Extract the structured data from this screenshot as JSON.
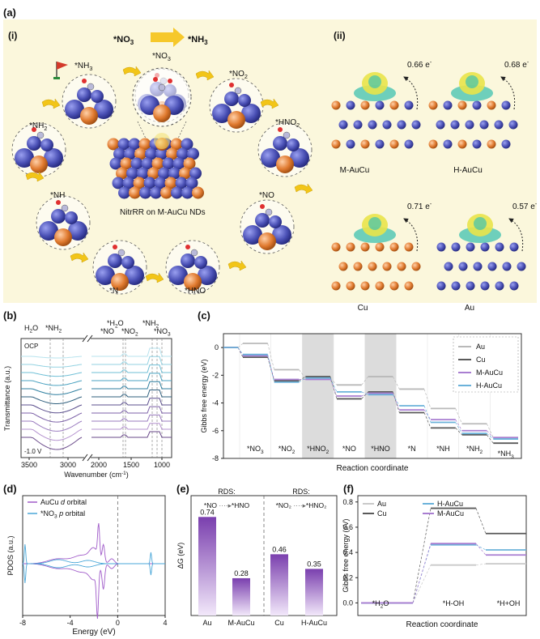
{
  "figure_label": "(a)",
  "panel_a": {
    "label_i": "(i)",
    "label_ii": "(ii)",
    "reaction_from": "*NO",
    "reaction_from_sub": "3",
    "reaction_to": "*NH",
    "reaction_to_sub": "3",
    "center_caption": "NitrRR on M-AuCu NDs",
    "cycle": [
      {
        "name": "*NH3-final",
        "text": "*NH",
        "sub": "3"
      },
      {
        "name": "*NO3",
        "text": "*NO",
        "sub": "3"
      },
      {
        "name": "*NO2",
        "text": "*NO",
        "sub": "2"
      },
      {
        "name": "*HNO2",
        "text": "*HNO",
        "sub": "2"
      },
      {
        "name": "*NO",
        "text": "*NO",
        "sub": ""
      },
      {
        "name": "*HNO",
        "text": "*HNO",
        "sub": ""
      },
      {
        "name": "*N",
        "text": "*N",
        "sub": ""
      },
      {
        "name": "*NH",
        "text": "*NH",
        "sub": ""
      },
      {
        "name": "*NH2",
        "text": "*NH",
        "sub": "2"
      }
    ],
    "charge": [
      {
        "label": "M-AuCu",
        "charge": "0.66 e",
        "sup": "-"
      },
      {
        "label": "H-AuCu",
        "charge": "0.68 e",
        "sup": "-"
      },
      {
        "label": "Cu",
        "charge": "0.71 e",
        "sup": "-"
      },
      {
        "label": "Au",
        "charge": "0.57 e",
        "sup": "-"
      }
    ],
    "colors": {
      "background": "#fbf7dc",
      "au_atom": "#4a50b5",
      "cu_atom": "#e07a2f",
      "arrow": "#f2c518"
    }
  },
  "panel_b": {
    "label": "(b)",
    "ylabel": "Transmittance (a.u.)",
    "xlabel": "Wavenumber (cm",
    "xlabel_sup": "-1",
    "xlabel_end": ")",
    "top_labels": [
      "H2O",
      "*NH2",
      "*H2O",
      "*NO",
      "*NO2",
      "*NH2",
      "*NO3"
    ],
    "ocp": "OCP",
    "potential": "-1.0 V",
    "x_ticks": [
      "3500",
      "3000",
      "2000",
      "1500",
      "1000"
    ]
  },
  "chart_data": [
    {
      "panel": "c",
      "type": "line",
      "title": "",
      "xlabel": "Reaction coordinate",
      "ylabel": "Gibbs free energy (eV)",
      "ylim": [
        -8,
        1
      ],
      "y_ticks": [
        "0",
        "-2",
        "-4",
        "-6",
        "-8"
      ],
      "categories": [
        "*NO3",
        "*NO2",
        "*HNO2",
        "*NO",
        "*HNO",
        "*N",
        "*NH",
        "*NH2",
        "*NH3"
      ],
      "highlighted_steps": [
        "*HNO2",
        "*HNO"
      ],
      "legend_position": "top-right",
      "series": [
        {
          "name": "Au",
          "color": "#b9b9b9",
          "values": [
            0.3,
            -1.6,
            -2.2,
            -2.7,
            -2.1,
            -3.0,
            -4.4,
            -5.5,
            -6.5
          ]
        },
        {
          "name": "Cu",
          "color": "#5a5a5a",
          "values": [
            -0.7,
            -2.4,
            -2.1,
            -3.7,
            -3.2,
            -4.7,
            -5.8,
            -6.3,
            -6.9
          ]
        },
        {
          "name": "M-AuCu",
          "color": "#a97ed1",
          "values": [
            -0.6,
            -2.3,
            -2.3,
            -3.5,
            -3.3,
            -4.5,
            -5.2,
            -6.0,
            -6.5
          ]
        },
        {
          "name": "H-AuCu",
          "color": "#6bb2da",
          "values": [
            -0.5,
            -2.5,
            -2.2,
            -3.2,
            -3.4,
            -4.2,
            -5.4,
            -6.2,
            -6.6
          ]
        }
      ]
    },
    {
      "panel": "d",
      "type": "line",
      "xlabel": "Energy (eV)",
      "ylabel": "PDOS (a.u.)",
      "x_ticks": [
        "-8",
        "-4",
        "0",
        "4"
      ],
      "xlim": [
        -8,
        4
      ],
      "legend_position": "top-left",
      "series": [
        {
          "name": "AuCu d orbital",
          "legend_prefix": "AuCu ",
          "legend_italic": "d",
          "legend_suffix": " orbital",
          "color": "#a05bc9"
        },
        {
          "name": "*NO3 p orbital",
          "legend_prefix": "*NO",
          "legend_sub": "3",
          "legend_italic": " p",
          "legend_suffix": " orbital",
          "color": "#4aa7d8"
        }
      ]
    },
    {
      "panel": "e",
      "type": "bar",
      "ylabel": "ΔG (eV)",
      "ylim": [
        0,
        0.9
      ],
      "categories": [
        "Au",
        "M-AuCu",
        "Cu",
        "H-AuCu"
      ],
      "values": [
        0.74,
        0.28,
        0.46,
        0.35
      ],
      "value_labels": [
        "0.74",
        "0.28",
        "0.46",
        "0.35"
      ],
      "groups": [
        {
          "title": "RDS:",
          "step_from": "*NO",
          "step_to": "*HNO"
        },
        {
          "title": "RDS:",
          "step_from": "*NO₂",
          "step_to": "*HNO₂"
        }
      ],
      "bar_color": "#7a3fae"
    },
    {
      "panel": "f",
      "type": "line",
      "xlabel": "Reaction coordinate",
      "ylabel": "Gibbs free energy (eV)",
      "ylim": [
        -0.1,
        0.85
      ],
      "y_ticks": [
        "0.0",
        "0.2",
        "0.4",
        "0.6",
        "0.8"
      ],
      "categories": [
        "*H2O",
        "*H-OH",
        "*H+OH"
      ],
      "legend_position": "top-left",
      "series": [
        {
          "name": "Au",
          "color": "#c9c9c9",
          "values": [
            0.0,
            0.3,
            0.31
          ]
        },
        {
          "name": "Cu",
          "color": "#5a5a5a",
          "values": [
            0.0,
            0.75,
            0.55
          ]
        },
        {
          "name": "H-AuCu",
          "color": "#6bb2da",
          "values": [
            0.0,
            0.46,
            0.42
          ]
        },
        {
          "name": "M-AuCu",
          "color": "#a97ed1",
          "values": [
            0.0,
            0.47,
            0.38
          ]
        }
      ]
    }
  ]
}
